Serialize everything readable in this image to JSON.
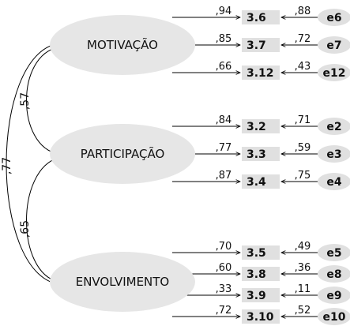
{
  "colors": {
    "factor_fill": "#e6e6e6",
    "box_fill": "#e0e0e0",
    "line": "#000000"
  },
  "factors": [
    {
      "label": "MOTIVAÇÃO",
      "items": [
        {
          "loading": ",94",
          "item": "3.6",
          "residual": ",88",
          "error": "e6"
        },
        {
          "loading": ",85",
          "item": "3.7",
          "residual": ",72",
          "error": "e7"
        },
        {
          "loading": ",66",
          "item": "3.12",
          "residual": ",43",
          "error": "e12"
        }
      ]
    },
    {
      "label": "PARTICIPAÇÃO",
      "items": [
        {
          "loading": ",84",
          "item": "3.2",
          "residual": ",71",
          "error": "e2"
        },
        {
          "loading": ",77",
          "item": "3.3",
          "residual": ",59",
          "error": "e3"
        },
        {
          "loading": ",87",
          "item": "3.4",
          "residual": ",75",
          "error": "e4"
        }
      ]
    },
    {
      "label": "ENVOLVIMENTO",
      "items": [
        {
          "loading": ",70",
          "item": "3.5",
          "residual": ",49",
          "error": "e5"
        },
        {
          "loading": ",60",
          "item": "3.8",
          "residual": ",36",
          "error": "e8"
        },
        {
          "loading": ",33",
          "item": "3.9",
          "residual": ",11",
          "error": "e9"
        },
        {
          "loading": ",72",
          "item": "3.10",
          "residual": ",52",
          "error": "e10"
        }
      ]
    }
  ],
  "correlations": [
    {
      "from": "MOTIVAÇÃO",
      "to": "PARTICIPAÇÃO",
      "value": ",57"
    },
    {
      "from": "PARTICIPAÇÃO",
      "to": "ENVOLVIMENTO",
      "value": ",65"
    },
    {
      "from": "MOTIVAÇÃO",
      "to": "ENVOLVIMENTO",
      "value": ",77"
    }
  ]
}
